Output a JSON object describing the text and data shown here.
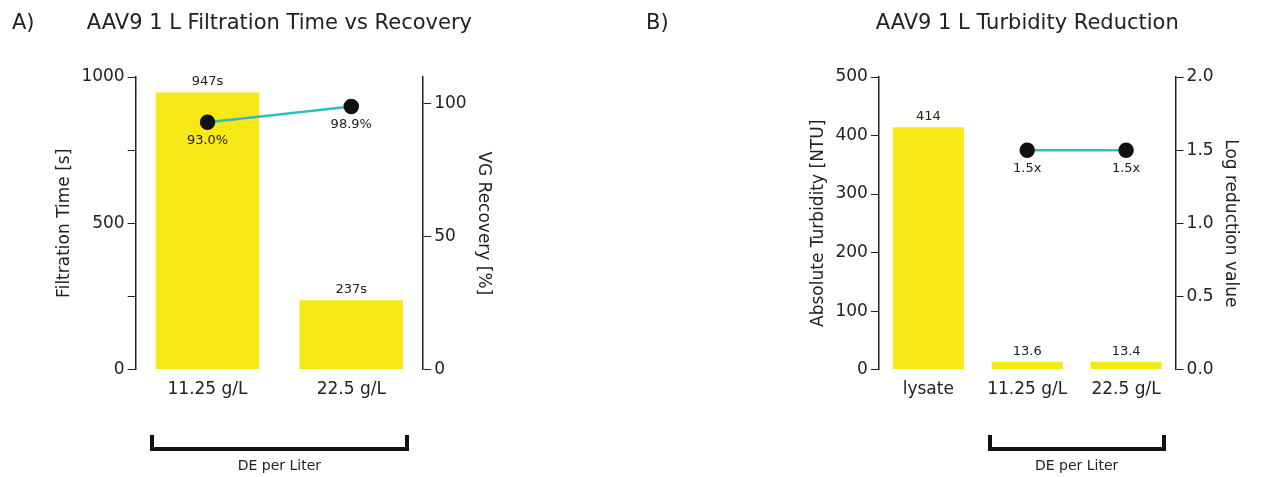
{
  "chart_data": [
    {
      "type": "bar",
      "title": "AAV9 1 L Filtration Time vs Recovery",
      "annotations": [
        "A)",
        "DE per Liter"
      ],
      "categories": [
        "11.25 g/L",
        "22.5 g/L"
      ],
      "ylabel": "Filtration Time [s]",
      "y2label": "VG Recovery [%]",
      "ylim": [
        0,
        1000
      ],
      "yticks": [
        0,
        {
          "value": 250,
          "label": null
        },
        500,
        {
          "value": 750,
          "label": null
        },
        1000
      ],
      "y2lim": [
        0,
        110
      ],
      "y2ticks": [
        0,
        50,
        100
      ],
      "grid": false,
      "legend": false,
      "marker": "circle",
      "series": [
        {
          "color": "#f7e817",
          "values": [
            947,
            237
          ],
          "value_labels": [
            "947s",
            "237s"
          ]
        },
        {
          "type": "line",
          "axis": "y2",
          "color": "#2bbfc4",
          "values": [
            93.0,
            98.9
          ],
          "value_labels": [
            "93.0%",
            "98.9%"
          ]
        }
      ]
    },
    {
      "type": "bar",
      "title": "AAV9 1 L Turbidity Reduction",
      "annotations": [
        "B)",
        "DE per Liter"
      ],
      "categories": [
        "lysate",
        "11.25 g/L",
        "22.5 g/L"
      ],
      "ylabel": "Absolute Turbidity [NTU]",
      "y2label": "Log reduction value",
      "ylim": [
        0,
        500
      ],
      "yticks": [
        0,
        100,
        200,
        300,
        400,
        500
      ],
      "y2lim": [
        0,
        2
      ],
      "y2ticks": [
        {
          "value": 0,
          "label": "0.0"
        },
        {
          "value": 0.5,
          "label": "0.5"
        },
        {
          "value": 1,
          "label": "1.0"
        },
        {
          "value": 1.5,
          "label": "1.5"
        },
        {
          "value": 2,
          "label": "2.0"
        }
      ],
      "grid": false,
      "legend": false,
      "marker": "circle",
      "series": [
        {
          "color": "#f7e817",
          "values": [
            414,
            13.6,
            13.4
          ],
          "value_labels": [
            "414",
            "13.6",
            "13.4"
          ]
        },
        {
          "type": "line",
          "axis": "y2",
          "color": "#2bbfc4",
          "values": [
            null,
            1.5,
            1.5
          ],
          "value_labels": [
            null,
            "1.5x",
            "1.5x"
          ]
        }
      ]
    }
  ]
}
